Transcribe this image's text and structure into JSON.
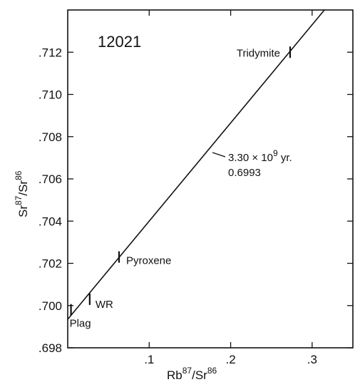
{
  "chart_data": {
    "type": "scatter",
    "title": "12021",
    "xlabel": "Rb",
    "xlabel_sup1": "87",
    "xlabel_mid": "/Sr",
    "xlabel_sup2": "86",
    "ylabel": "Sr",
    "ylabel_sup1": "87",
    "ylabel_mid": "/Sr",
    "ylabel_sup2": "86",
    "xlim": [
      0,
      0.35
    ],
    "ylim": [
      0.698,
      0.714
    ],
    "x_ticks": [
      {
        "value": 0.1,
        "label": ".1"
      },
      {
        "value": 0.2,
        "label": ".2"
      },
      {
        "value": 0.3,
        "label": ".3"
      }
    ],
    "y_ticks": [
      {
        "value": 0.698,
        "label": ".698"
      },
      {
        "value": 0.7,
        "label": ".700"
      },
      {
        "value": 0.702,
        "label": ".702"
      },
      {
        "value": 0.704,
        "label": ".704"
      },
      {
        "value": 0.706,
        "label": ".706"
      },
      {
        "value": 0.708,
        "label": ".708"
      },
      {
        "value": 0.71,
        "label": ".710"
      },
      {
        "value": 0.712,
        "label": ".712"
      }
    ],
    "isochron": {
      "intercept": 0.69935,
      "slope": 0.0465,
      "age_label_number": "3.30 × 10",
      "age_label_exp": "9",
      "age_label_unit": " yr.",
      "initial_label": "0.6993"
    },
    "points": [
      {
        "name": "Plag",
        "x": 0.004,
        "y": 0.6998
      },
      {
        "name": "WR",
        "x": 0.027,
        "y": 0.7003
      },
      {
        "name": "Pyroxene",
        "x": 0.063,
        "y": 0.7023
      },
      {
        "name": "Tridymite",
        "x": 0.273,
        "y": 0.712
      }
    ],
    "grid": false
  }
}
